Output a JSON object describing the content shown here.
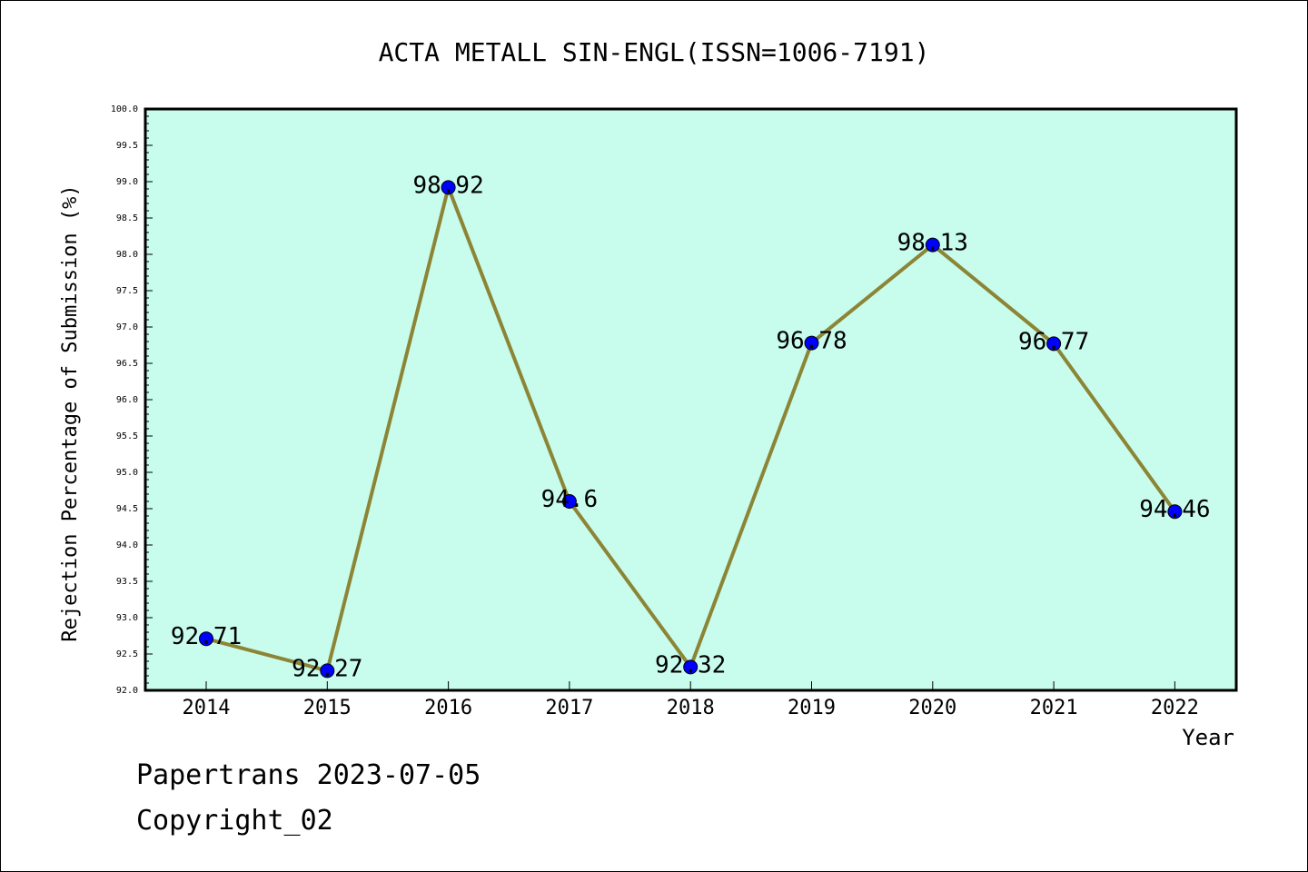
{
  "chart_data": {
    "type": "line",
    "title": "ACTA METALL SIN-ENGL(ISSN=1006-7191)",
    "xlabel": "Year",
    "ylabel": "Rejection Percentage of Submission (%)",
    "categories": [
      "2014",
      "2015",
      "2016",
      "2017",
      "2018",
      "2019",
      "2020",
      "2021",
      "2022"
    ],
    "values": [
      92.71,
      92.27,
      98.92,
      94.6,
      92.32,
      96.78,
      98.13,
      96.77,
      94.46
    ],
    "data_labels": [
      "92.71",
      "92.27",
      "98.92",
      "94.6",
      "92.32",
      "96.78",
      "98.13",
      "96.77",
      "94.46"
    ],
    "ylim": [
      92.0,
      100.0
    ],
    "yticks": [
      "92.0",
      "92.5",
      "93.0",
      "93.5",
      "94.0",
      "94.5",
      "95.0",
      "95.5",
      "96.0",
      "96.5",
      "97.0",
      "97.5",
      "98.0",
      "98.5",
      "99.0",
      "99.5",
      "100.0"
    ],
    "grid": false,
    "legend": "none",
    "colors": {
      "plot_background": "#c8fced",
      "line": "#8b8535",
      "marker": "#0000ff"
    }
  },
  "footer": {
    "line1": "Papertrans 2023-07-05",
    "line2": "Copyright_02"
  }
}
